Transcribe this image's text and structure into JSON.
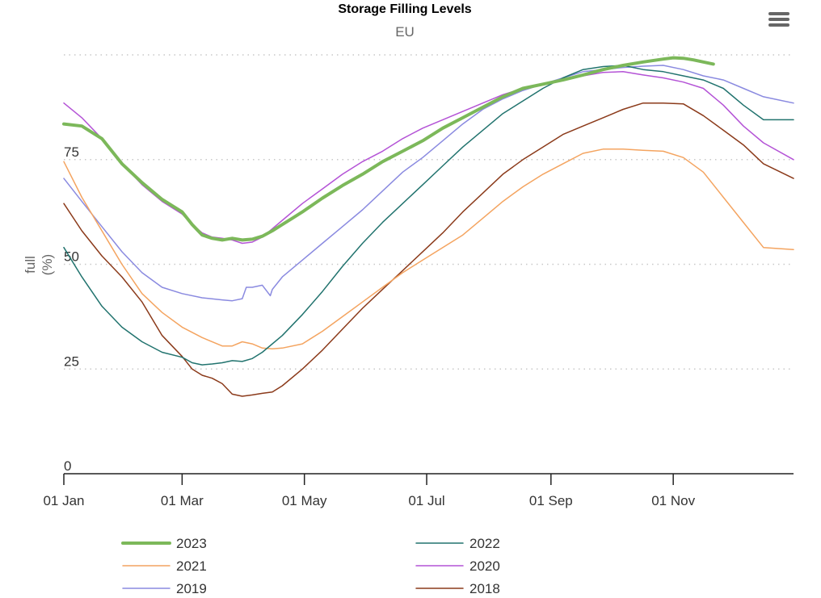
{
  "chart_data": {
    "type": "line",
    "title": "Storage Filling Levels",
    "subtitle": "EU",
    "ylabel": "full",
    "yunit": "(%)",
    "ylim": [
      0,
      100
    ],
    "yticks": [
      0,
      25,
      50,
      75
    ],
    "xlim": [
      1,
      365
    ],
    "xticks": [
      {
        "label": "01 Jan",
        "day": 1
      },
      {
        "label": "01 Mar",
        "day": 60
      },
      {
        "label": "01 May",
        "day": 121
      },
      {
        "label": "01 Jul",
        "day": 182
      },
      {
        "label": "01 Sep",
        "day": 244
      },
      {
        "label": "01 Nov",
        "day": 305
      }
    ],
    "grid": "horizontal-dotted",
    "legend_position": "bottom",
    "series": [
      {
        "name": "2023",
        "color": "#7cb85a",
        "width": 4,
        "points": [
          [
            1,
            83.5
          ],
          [
            10,
            83
          ],
          [
            20,
            80
          ],
          [
            30,
            74
          ],
          [
            40,
            69.5
          ],
          [
            50,
            65.5
          ],
          [
            60,
            62.5
          ],
          [
            65,
            59.5
          ],
          [
            70,
            57
          ],
          [
            75,
            56.2
          ],
          [
            80,
            55.8
          ],
          [
            85,
            56.2
          ],
          [
            90,
            55.8
          ],
          [
            95,
            56
          ],
          [
            100,
            56.7
          ],
          [
            105,
            58
          ],
          [
            110,
            59.5
          ],
          [
            115,
            61
          ],
          [
            120,
            62.5
          ],
          [
            130,
            65.8
          ],
          [
            140,
            68.8
          ],
          [
            150,
            71.5
          ],
          [
            160,
            74.5
          ],
          [
            170,
            77
          ],
          [
            180,
            79.5
          ],
          [
            190,
            82.5
          ],
          [
            200,
            85
          ],
          [
            210,
            87.5
          ],
          [
            220,
            90
          ],
          [
            230,
            92
          ],
          [
            240,
            93
          ],
          [
            250,
            94
          ],
          [
            260,
            95.2
          ],
          [
            270,
            96.5
          ],
          [
            280,
            97.5
          ],
          [
            290,
            98.3
          ],
          [
            300,
            99
          ],
          [
            305,
            99.3
          ],
          [
            310,
            99.2
          ],
          [
            315,
            98.8
          ],
          [
            325,
            97.8
          ]
        ]
      },
      {
        "name": "2022",
        "color": "#21736e",
        "width": 1.5,
        "points": [
          [
            1,
            54
          ],
          [
            10,
            47
          ],
          [
            20,
            40
          ],
          [
            30,
            35
          ],
          [
            40,
            31.5
          ],
          [
            50,
            29
          ],
          [
            60,
            27.8
          ],
          [
            65,
            26.5
          ],
          [
            70,
            26
          ],
          [
            75,
            26.2
          ],
          [
            80,
            26.5
          ],
          [
            85,
            27
          ],
          [
            90,
            26.8
          ],
          [
            95,
            27.5
          ],
          [
            100,
            29
          ],
          [
            110,
            33
          ],
          [
            120,
            38
          ],
          [
            130,
            43.5
          ],
          [
            140,
            49.5
          ],
          [
            150,
            55
          ],
          [
            160,
            60
          ],
          [
            170,
            64.5
          ],
          [
            180,
            69
          ],
          [
            190,
            73.5
          ],
          [
            200,
            78
          ],
          [
            210,
            82
          ],
          [
            220,
            86
          ],
          [
            230,
            89
          ],
          [
            240,
            92
          ],
          [
            250,
            94.5
          ],
          [
            260,
            96.5
          ],
          [
            270,
            97.2
          ],
          [
            280,
            97.5
          ],
          [
            290,
            96.5
          ],
          [
            300,
            96
          ],
          [
            310,
            95
          ],
          [
            320,
            94
          ],
          [
            330,
            92
          ],
          [
            340,
            88
          ],
          [
            350,
            84.5
          ],
          [
            365,
            84.5
          ]
        ]
      },
      {
        "name": "2021",
        "color": "#f4a460",
        "width": 1.5,
        "points": [
          [
            1,
            74.5
          ],
          [
            10,
            66
          ],
          [
            20,
            58
          ],
          [
            30,
            50
          ],
          [
            40,
            43
          ],
          [
            50,
            38.5
          ],
          [
            60,
            35
          ],
          [
            70,
            32.5
          ],
          [
            80,
            30.5
          ],
          [
            85,
            30.5
          ],
          [
            90,
            31.5
          ],
          [
            95,
            31
          ],
          [
            100,
            30
          ],
          [
            105,
            29.8
          ],
          [
            110,
            30
          ],
          [
            120,
            31
          ],
          [
            130,
            34
          ],
          [
            140,
            37.5
          ],
          [
            150,
            41
          ],
          [
            160,
            44.5
          ],
          [
            170,
            48
          ],
          [
            180,
            51
          ],
          [
            190,
            54
          ],
          [
            200,
            57
          ],
          [
            210,
            61
          ],
          [
            220,
            65
          ],
          [
            230,
            68.5
          ],
          [
            240,
            71.5
          ],
          [
            250,
            74
          ],
          [
            260,
            76.5
          ],
          [
            270,
            77.5
          ],
          [
            280,
            77.5
          ],
          [
            290,
            77.2
          ],
          [
            300,
            77
          ],
          [
            310,
            75.5
          ],
          [
            320,
            72
          ],
          [
            330,
            66
          ],
          [
            340,
            60
          ],
          [
            350,
            54
          ],
          [
            365,
            53.5
          ]
        ]
      },
      {
        "name": "2020",
        "color": "#b453d6",
        "width": 1.5,
        "points": [
          [
            1,
            88.5
          ],
          [
            10,
            85
          ],
          [
            20,
            80
          ],
          [
            30,
            74
          ],
          [
            40,
            69
          ],
          [
            50,
            65
          ],
          [
            60,
            62
          ],
          [
            65,
            59.5
          ],
          [
            70,
            57.5
          ],
          [
            75,
            56.5
          ],
          [
            80,
            56.2
          ],
          [
            85,
            55.8
          ],
          [
            90,
            55
          ],
          [
            95,
            55.3
          ],
          [
            100,
            56.5
          ],
          [
            105,
            58.5
          ],
          [
            110,
            60.5
          ],
          [
            120,
            64.5
          ],
          [
            130,
            68
          ],
          [
            140,
            71.5
          ],
          [
            150,
            74.5
          ],
          [
            160,
            77
          ],
          [
            170,
            80
          ],
          [
            180,
            82.5
          ],
          [
            190,
            84.5
          ],
          [
            200,
            86.5
          ],
          [
            210,
            88.5
          ],
          [
            220,
            90.5
          ],
          [
            230,
            92
          ],
          [
            240,
            93
          ],
          [
            250,
            94
          ],
          [
            260,
            95
          ],
          [
            270,
            95.8
          ],
          [
            280,
            96
          ],
          [
            290,
            95.2
          ],
          [
            300,
            94.5
          ],
          [
            310,
            93.5
          ],
          [
            320,
            92
          ],
          [
            330,
            88
          ],
          [
            340,
            83
          ],
          [
            350,
            79
          ],
          [
            365,
            75
          ]
        ]
      },
      {
        "name": "2019",
        "color": "#8a8ae0",
        "width": 1.5,
        "points": [
          [
            1,
            70.5
          ],
          [
            10,
            65
          ],
          [
            20,
            59
          ],
          [
            30,
            53
          ],
          [
            40,
            48
          ],
          [
            50,
            44.5
          ],
          [
            60,
            43
          ],
          [
            70,
            42
          ],
          [
            80,
            41.5
          ],
          [
            85,
            41.3
          ],
          [
            90,
            41.8
          ],
          [
            92,
            44.5
          ],
          [
            95,
            44.5
          ],
          [
            100,
            45
          ],
          [
            104,
            42.5
          ],
          [
            105,
            44
          ],
          [
            110,
            47
          ],
          [
            120,
            51
          ],
          [
            130,
            55
          ],
          [
            140,
            59
          ],
          [
            150,
            63
          ],
          [
            160,
            67.5
          ],
          [
            170,
            72
          ],
          [
            180,
            75.5
          ],
          [
            190,
            79.5
          ],
          [
            200,
            83.5
          ],
          [
            210,
            87
          ],
          [
            220,
            89.5
          ],
          [
            230,
            91.5
          ],
          [
            240,
            93
          ],
          [
            250,
            94.5
          ],
          [
            260,
            96
          ],
          [
            270,
            96.5
          ],
          [
            280,
            97
          ],
          [
            290,
            97.3
          ],
          [
            300,
            97.5
          ],
          [
            310,
            96.5
          ],
          [
            320,
            95
          ],
          [
            330,
            94
          ],
          [
            340,
            92
          ],
          [
            350,
            90
          ],
          [
            365,
            88.5
          ]
        ]
      },
      {
        "name": "2018",
        "color": "#8b3a1a",
        "width": 1.5,
        "points": [
          [
            1,
            64.5
          ],
          [
            10,
            58
          ],
          [
            20,
            52
          ],
          [
            30,
            47
          ],
          [
            40,
            41
          ],
          [
            50,
            33
          ],
          [
            60,
            28
          ],
          [
            65,
            25
          ],
          [
            70,
            23.5
          ],
          [
            75,
            22.8
          ],
          [
            80,
            21.5
          ],
          [
            85,
            19
          ],
          [
            90,
            18.5
          ],
          [
            95,
            18.8
          ],
          [
            100,
            19.2
          ],
          [
            105,
            19.5
          ],
          [
            110,
            21
          ],
          [
            120,
            25
          ],
          [
            130,
            29.5
          ],
          [
            140,
            34.5
          ],
          [
            150,
            39.5
          ],
          [
            160,
            44
          ],
          [
            170,
            48.5
          ],
          [
            180,
            53
          ],
          [
            190,
            57.5
          ],
          [
            200,
            62.5
          ],
          [
            210,
            67
          ],
          [
            220,
            71.5
          ],
          [
            230,
            75
          ],
          [
            240,
            78
          ],
          [
            250,
            81
          ],
          [
            260,
            83
          ],
          [
            270,
            85
          ],
          [
            280,
            87
          ],
          [
            290,
            88.5
          ],
          [
            300,
            88.5
          ],
          [
            310,
            88.3
          ],
          [
            320,
            85.5
          ],
          [
            330,
            82
          ],
          [
            340,
            78.5
          ],
          [
            350,
            74
          ],
          [
            365,
            70.5
          ]
        ]
      }
    ]
  },
  "menu": {
    "icon": "hamburger-menu-icon"
  }
}
